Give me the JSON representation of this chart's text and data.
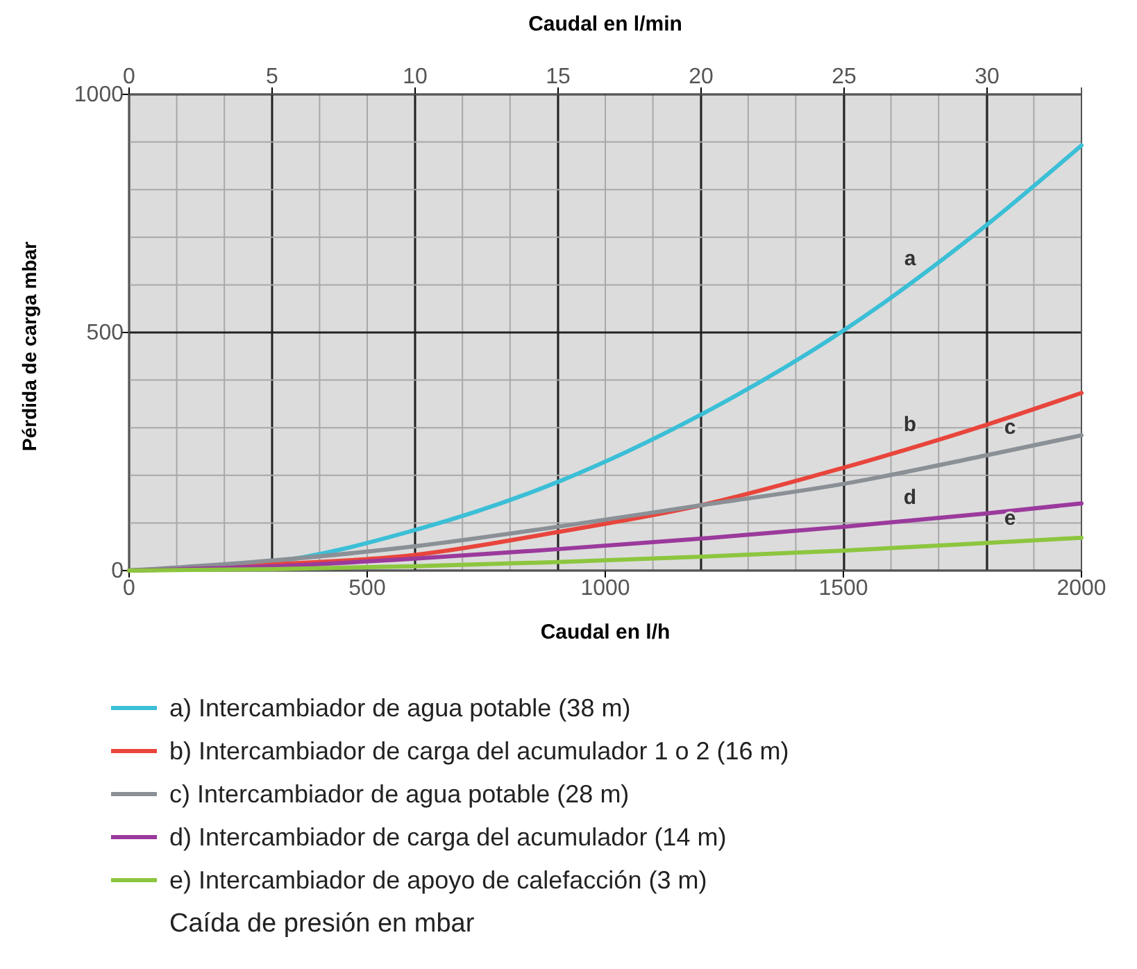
{
  "chart_data": {
    "type": "line",
    "xlabel": "Caudal en l/h",
    "x2label": "Caudal en l/min",
    "ylabel": "Pérdida de carga mbar",
    "x": [
      0,
      300,
      600,
      900,
      1200,
      1500,
      1800,
      2000
    ],
    "xlim": [
      0,
      2000
    ],
    "xticks": [
      0,
      {
        "value": 100,
        "label": null
      },
      {
        "value": 200,
        "label": null
      },
      {
        "value": 300,
        "label": null
      },
      {
        "value": 400,
        "label": null
      },
      500,
      {
        "value": 600,
        "label": null
      },
      {
        "value": 700,
        "label": null
      },
      {
        "value": 800,
        "label": null
      },
      {
        "value": 900,
        "label": null
      },
      1000,
      {
        "value": 1100,
        "label": null
      },
      {
        "value": 1200,
        "label": null
      },
      {
        "value": 1300,
        "label": null
      },
      {
        "value": 1400,
        "label": null
      },
      1500,
      {
        "value": 1600,
        "label": null
      },
      {
        "value": 1700,
        "label": null
      },
      {
        "value": 1800,
        "label": null
      },
      {
        "value": 1900,
        "label": null
      },
      2000
    ],
    "x2lim": [
      0,
      33.3
    ],
    "x2ticks": [
      0,
      5,
      10,
      15,
      20,
      25,
      30
    ],
    "ylim": [
      0,
      1000
    ],
    "yticks": [
      0,
      {
        "value": 100,
        "label": null
      },
      {
        "value": 200,
        "label": null
      },
      {
        "value": 300,
        "label": null
      },
      {
        "value": 400,
        "label": null
      },
      500,
      {
        "value": 600,
        "label": null
      },
      {
        "value": 700,
        "label": null
      },
      {
        "value": 800,
        "label": null
      },
      {
        "value": 900,
        "label": null
      },
      1000
    ],
    "grid": true,
    "legend": "bottom",
    "line_style": "solid",
    "marker": "none",
    "series": [
      {
        "name": "a) Intercambiador de agua potable (38 m)",
        "color": "#3bbfd6",
        "values": [
          0,
          18,
          85,
          186,
          327,
          504,
          725,
          893
        ]
      },
      {
        "name": "b) Intercambiador de carga del acumulador 1 o 2 (16 m)",
        "color": "#e8453c",
        "values": [
          0,
          13,
          33,
          81,
          137,
          216,
          306,
          373
        ]
      },
      {
        "name": "c) Intercambiador de agua potable (28 m)",
        "color": "#8a9096",
        "values": [
          0,
          21,
          51,
          92,
          137,
          182,
          242,
          284
        ]
      },
      {
        "name": "d) Intercambiador de carga del acumulador (14 m)",
        "color": "#9b3a9c",
        "values": [
          0,
          9,
          25,
          45,
          67,
          92,
          120,
          141
        ]
      },
      {
        "name": "e) Intercambiador de apoyo de calefacción (3 m)",
        "color": "#8cc63f",
        "values": [
          0,
          3,
          9,
          18,
          29,
          42,
          58,
          69
        ]
      }
    ],
    "annotations": [
      "a",
      "b",
      "c",
      "d",
      "e",
      "Caída de presión en mbar"
    ]
  }
}
